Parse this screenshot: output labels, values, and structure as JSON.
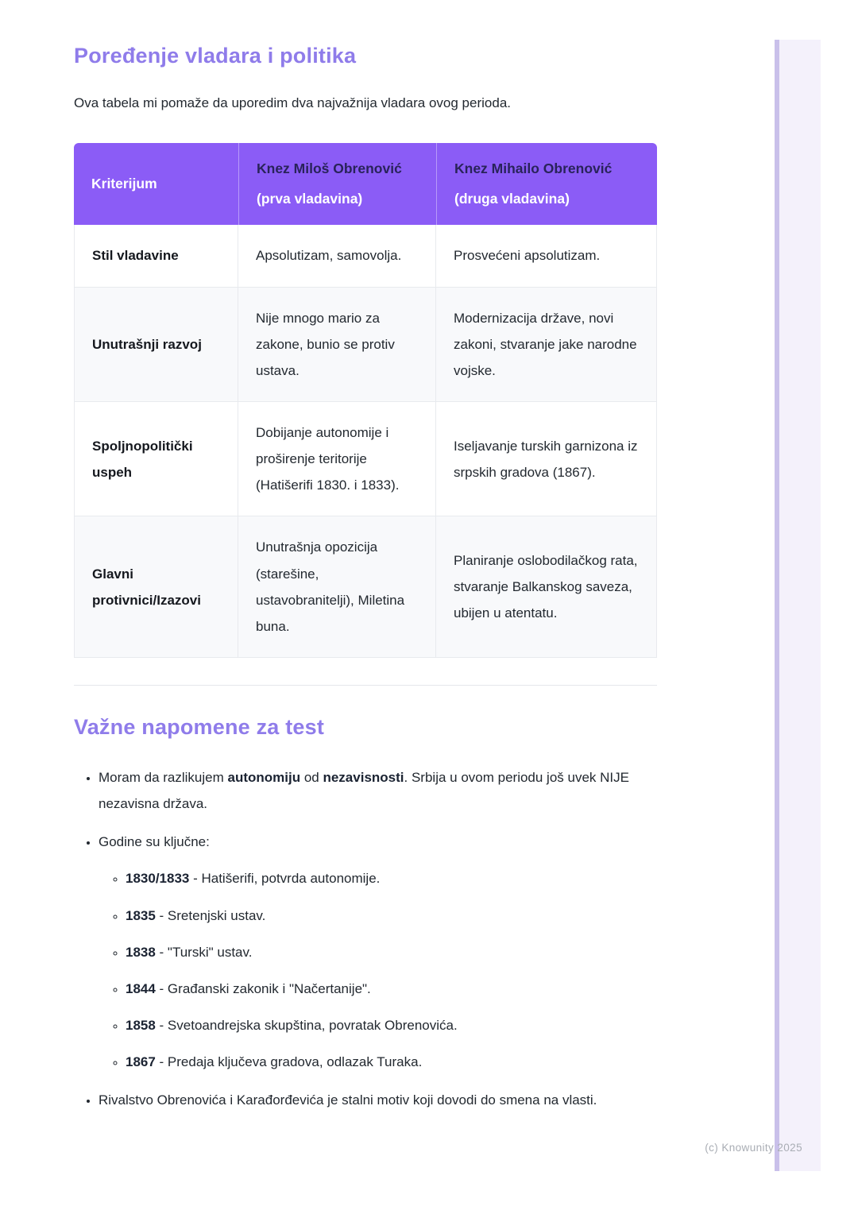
{
  "section1": {
    "title": "Poređenje vladara i politika",
    "intro": "Ova tabela mi pomaže da uporedim dva najvažnija vladara ovog perioda."
  },
  "table": {
    "header": {
      "col1": "Kriterijum",
      "col2_name": "Knez Miloš Obrenović",
      "col2_rest": " (prva vladavina)",
      "col3_name": "Knez Mihailo Obrenović",
      "col3_rest": " (druga vladavina)"
    },
    "rows": [
      {
        "criterion": "Stil vladavine",
        "milos": "Apsolutizam, samovolja.",
        "mihailo": "Prosvećeni apsolutizam."
      },
      {
        "criterion": "Unutrašnji razvoj",
        "milos": "Nije mnogo mario za zakone, bunio se protiv ustava.",
        "mihailo": "Modernizacija države, novi zakoni, stvaranje jake narodne vojske."
      },
      {
        "criterion": "Spoljnopolitički uspeh",
        "milos": "Dobijanje autonomije i proširenje teritorije (Hatišerifi 1830. i 1833).",
        "mihailo": "Iseljavanje turskih garnizona iz srpskih gradova (1867)."
      },
      {
        "criterion": "Glavni protivnici/Izazovi",
        "milos": "Unutrašnja opozicija (starešine, ustavobranitelji), Miletina buna.",
        "mihailo": "Planiranje oslobodilačkog rata, stvaranje Balkanskog saveza, ubijen u atentatu."
      }
    ]
  },
  "notes": {
    "title": "Važne napomene za test",
    "note1": {
      "pre": "Moram da razlikujem ",
      "bold1": "autonomiju",
      "mid": " od ",
      "bold2": "nezavisnosti",
      "post": ". Srbija u ovom periodu još uvek NIJE nezavisna država."
    },
    "note2_label": "Godine su ključne:",
    "years": [
      {
        "year": "1830/1833",
        "text": " - Hatišerifi, potvrda autonomije."
      },
      {
        "year": "1835",
        "text": " - Sretenjski ustav."
      },
      {
        "year": "1838",
        "text": " - \"Turski\" ustav."
      },
      {
        "year": "1844",
        "text": " - Građanski zakonik i \"Načertanije\"."
      },
      {
        "year": "1858",
        "text": " - Svetoandrejska skupština, povratak Obrenovića."
      },
      {
        "year": "1867",
        "text": " - Predaja ključeva gradova, odlazak Turaka."
      }
    ],
    "note3": "Rivalstvo Obrenovića i Karađorđevića je stalni motiv koji dovodi do smena na vlasti."
  },
  "footer": {
    "copyright": "(c) Knowunity 2025"
  },
  "colors": {
    "heading_accent": "#8f7cea",
    "table_header_bg": "#8b5cf6",
    "table_header_dark_text": "#29235a",
    "row_alt_bg": "#f8f9fb",
    "border": "#e8eaee",
    "watermark_text": "#a9adb4",
    "page_edge_bar": "#c9c0ea",
    "page_edge_panel": "#f4f1fb"
  }
}
